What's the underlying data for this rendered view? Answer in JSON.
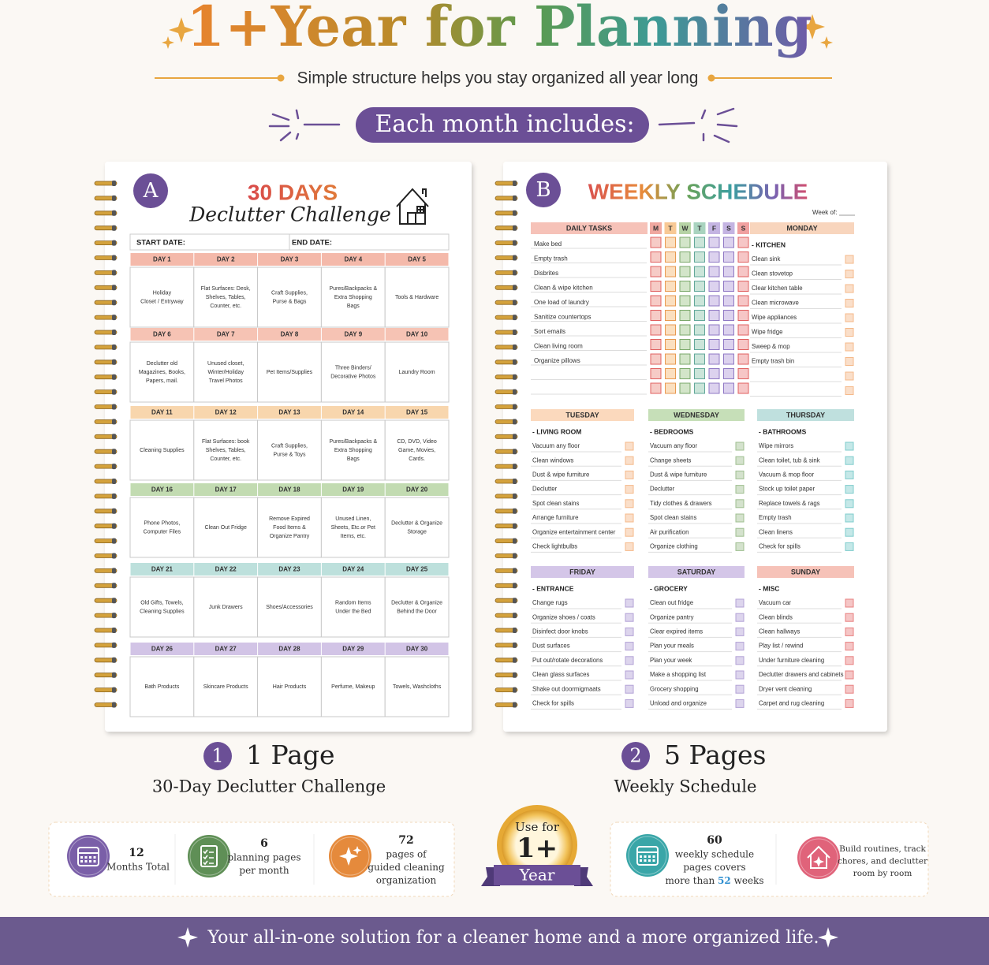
{
  "header": {
    "title": "1+Year for Planning",
    "subtitle": "Simple structure helps you stay organized all year long",
    "badge": "Each month includes:"
  },
  "page_a": {
    "letter": "A",
    "title": "30 DAYS",
    "subtitle": "Declutter Challenge",
    "start_label": "START DATE:",
    "end_label": "END DATE:",
    "days": [
      {
        "label": "DAY 1",
        "lines": [
          "Holiday",
          "Closet / Entryway"
        ]
      },
      {
        "label": "DAY 2",
        "lines": [
          "Flat Surfaces: Desk,",
          "Shelves, Tables,",
          "Counter, etc."
        ]
      },
      {
        "label": "DAY 3",
        "lines": [
          "Craft Supplies,",
          "Purse & Bags"
        ]
      },
      {
        "label": "DAY 4",
        "lines": [
          "Pures/Backpacks &",
          "Extra Shopping",
          "Bags"
        ]
      },
      {
        "label": "DAY 5",
        "lines": [
          "Tools & Hardware"
        ]
      },
      {
        "label": "DAY 6",
        "lines": [
          "Declutter old",
          "Magazines, Books,",
          "Papers, mail."
        ]
      },
      {
        "label": "DAY 7",
        "lines": [
          "Unused closet,",
          "Winter/Holiday",
          "Travel Photos"
        ]
      },
      {
        "label": "DAY 8",
        "lines": [
          "Pet Items/Supplies"
        ]
      },
      {
        "label": "DAY 9",
        "lines": [
          "Three Binders/",
          "Decorative Photos"
        ]
      },
      {
        "label": "DAY 10",
        "lines": [
          "Laundry Room"
        ]
      },
      {
        "label": "DAY 11",
        "lines": [
          "Cleaning Supplies"
        ]
      },
      {
        "label": "DAY 12",
        "lines": [
          "Flat Surfaces: book",
          "Shelves, Tables,",
          "Counter, etc."
        ]
      },
      {
        "label": "DAY 13",
        "lines": [
          "Craft Supplies,",
          "Purse & Toys"
        ]
      },
      {
        "label": "DAY 14",
        "lines": [
          "Pures/Backpacks &",
          "Extra Shopping",
          "Bags"
        ]
      },
      {
        "label": "DAY 15",
        "lines": [
          "CD, DVD, Video",
          "Game, Movies,",
          "Cards."
        ]
      },
      {
        "label": "DAY 16",
        "lines": [
          "Phone Photos,",
          "Computer Files"
        ]
      },
      {
        "label": "DAY 17",
        "lines": [
          "Clean Out Fridge"
        ]
      },
      {
        "label": "DAY 18",
        "lines": [
          "Remove Expired",
          "Food Items &",
          "Organize Pantry"
        ]
      },
      {
        "label": "DAY 19",
        "lines": [
          "Unused Linen,",
          "Sheets, Etc.or Pet",
          "Items, etc."
        ]
      },
      {
        "label": "DAY 20",
        "lines": [
          "Declutter & Organize",
          "Storage"
        ]
      },
      {
        "label": "DAY 21",
        "lines": [
          "Old Gifts, Towels,",
          "Cleaning Supplies"
        ]
      },
      {
        "label": "DAY 22",
        "lines": [
          "Junk Drawers"
        ]
      },
      {
        "label": "DAY 23",
        "lines": [
          "Shoes/Accessories"
        ]
      },
      {
        "label": "DAY 24",
        "lines": [
          "Random Items",
          "Under the Bed"
        ]
      },
      {
        "label": "DAY 25",
        "lines": [
          "Declutter & Organize",
          "Behind the Door"
        ]
      },
      {
        "label": "DAY 26",
        "lines": [
          "Bath Products"
        ]
      },
      {
        "label": "DAY 27",
        "lines": [
          "Skincare Products"
        ]
      },
      {
        "label": "DAY 28",
        "lines": [
          "Hair Products"
        ]
      },
      {
        "label": "DAY 29",
        "lines": [
          "Perfume, Makeup"
        ]
      },
      {
        "label": "DAY 30",
        "lines": [
          "Towels, Washcloths"
        ]
      }
    ]
  },
  "page_b": {
    "letter": "B",
    "title": "WEEKLY SCHEDULE",
    "week_of": "Week of:",
    "daily_header": "DAILY TASKS",
    "day_letters": [
      "M",
      "T",
      "W",
      "T",
      "F",
      "S",
      "S"
    ],
    "daily_tasks": [
      "Make bed",
      "Empty trash",
      "Disbrites",
      "Clean & wipe kitchen",
      "One load of laundry",
      "Sanitize countertops",
      "Sort emails",
      "Clean living room",
      "Organize pillows"
    ],
    "sections": [
      {
        "day": "MONDAY",
        "heading": "- KITCHEN",
        "items": [
          "Clean sink",
          "Clean stovetop",
          "Clear kitchen table",
          "Clean microwave",
          "Wipe appliances",
          "Wipe fridge",
          "Sweep & mop",
          "Empty trash bin"
        ]
      },
      {
        "day": "TUESDAY",
        "heading": "- LIVING ROOM",
        "items": [
          "Vacuum any floor",
          "Clean windows",
          "Dust & wipe furniture",
          "Declutter",
          "Spot clean stains",
          "Arrange furniture",
          "Organize entertainment center",
          "Check lightbulbs"
        ]
      },
      {
        "day": "WEDNESDAY",
        "heading": "- BEDROOMS",
        "items": [
          "Vacuum any floor",
          "Change sheets",
          "Dust & wipe furniture",
          "Declutter",
          "Tidy clothes & drawers",
          "Spot clean stains",
          "Air purification",
          "Organize clothing"
        ]
      },
      {
        "day": "THURSDAY",
        "heading": "- BATHROOMS",
        "items": [
          "Wipe mirrors",
          "Clean toilet, tub & sink",
          "Vacuum & mop floor",
          "Stock up toilet paper",
          "Replace towels & rags",
          "Empty trash",
          "Clean linens",
          "Check for spills"
        ]
      },
      {
        "day": "FRIDAY",
        "heading": "- ENTRANCE",
        "items": [
          "Change rugs",
          "Organize shoes / coats",
          "Disinfect door knobs",
          "Dust surfaces",
          "Put out/rotate decorations",
          "Clean glass surfaces",
          "Shake out doormigmaats",
          "Check for spills"
        ]
      },
      {
        "day": "SATURDAY",
        "heading": "- GROCERY",
        "items": [
          "Clean out fridge",
          "Organize pantry",
          "Clear expired items",
          "Plan your meals",
          "Plan your week",
          "Make a shopping list",
          "Grocery shopping",
          "Unload and organize"
        ]
      },
      {
        "day": "SUNDAY",
        "heading": "- MISC",
        "items": [
          "Vacuum car",
          "Clean blinds",
          "Clean hallways",
          "Play list / rewind",
          "Under furniture cleaning",
          "Declutter drawers and cabinets",
          "Dryer vent cleaning",
          "Carpet and rug cleaning"
        ]
      }
    ]
  },
  "captions": [
    {
      "number": "1",
      "title": "1 Page",
      "subtitle": "30-Day Declutter Challenge"
    },
    {
      "number": "2",
      "title": "5 Pages",
      "subtitle": "Weekly Schedule"
    }
  ],
  "stats": [
    {
      "number": "12",
      "lines": [
        "Months Total"
      ]
    },
    {
      "number": "6",
      "lines": [
        "planning pages",
        "per month"
      ]
    },
    {
      "number": "72",
      "lines": [
        "pages of",
        "guided cleaning",
        "organization"
      ]
    }
  ],
  "badge": {
    "top": "Use for",
    "big": "1+",
    "ribbon": "Year"
  },
  "stats_right": {
    "number": "60",
    "lines": [
      "weekly schedule",
      "pages covers"
    ],
    "last_pre": "more than",
    "highlight": "52",
    "last_post": "weeks",
    "routine_lines": [
      "Build routines, track",
      "chores, and declutter",
      "room by room"
    ]
  },
  "footer": "Your all-in-one solution for a cleaner home and a more organized life."
}
